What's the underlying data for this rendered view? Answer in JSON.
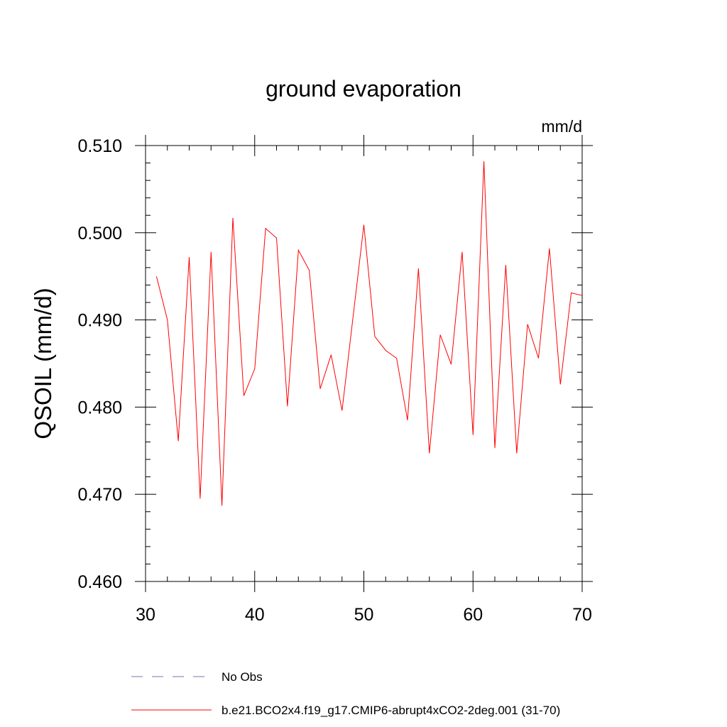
{
  "chart_data": {
    "type": "line",
    "title": "ground evaporation",
    "units": "mm/d",
    "ylabel": "QSOIL  (mm/d)",
    "xlabel": "",
    "xlim": [
      30,
      70
    ],
    "ylim": [
      0.46,
      0.51
    ],
    "x_ticks": [
      30,
      40,
      50,
      60,
      70
    ],
    "y_ticks": [
      "0.460",
      "0.470",
      "0.480",
      "0.490",
      "0.500",
      "0.510"
    ],
    "grid": false,
    "legend": {
      "position": "bottom",
      "entries": [
        {
          "name": "No Obs",
          "style": "dashed",
          "color": "#7d6fb3"
        },
        {
          "name": "b.e21.BCO2x4.f19_g17.CMIP6-abrupt4xCO2-2deg.001 (31-70)",
          "style": "solid",
          "color": "#ff0000"
        }
      ]
    },
    "series": [
      {
        "name": "b.e21.BCO2x4.f19_g17.CMIP6-abrupt4xCO2-2deg.001 (31-70)",
        "color": "#ff0000",
        "x": [
          31,
          32,
          33,
          34,
          35,
          36,
          37,
          38,
          39,
          40,
          41,
          42,
          43,
          44,
          45,
          46,
          47,
          48,
          49,
          50,
          51,
          52,
          53,
          54,
          55,
          56,
          57,
          58,
          59,
          60,
          61,
          62,
          63,
          64,
          65,
          66,
          67,
          68,
          69,
          70
        ],
        "y": [
          0.495,
          0.49,
          0.4761,
          0.4972,
          0.4695,
          0.4978,
          0.4687,
          0.5017,
          0.4813,
          0.4844,
          0.5005,
          0.4994,
          0.4801,
          0.498,
          0.4957,
          0.4821,
          0.486,
          0.4796,
          0.4902,
          0.5009,
          0.4881,
          0.4865,
          0.4856,
          0.4785,
          0.4959,
          0.4747,
          0.4883,
          0.4849,
          0.4978,
          0.4768,
          0.5082,
          0.4753,
          0.4963,
          0.4747,
          0.4895,
          0.4856,
          0.4982,
          0.4826,
          0.4931,
          0.4928
        ]
      }
    ]
  }
}
